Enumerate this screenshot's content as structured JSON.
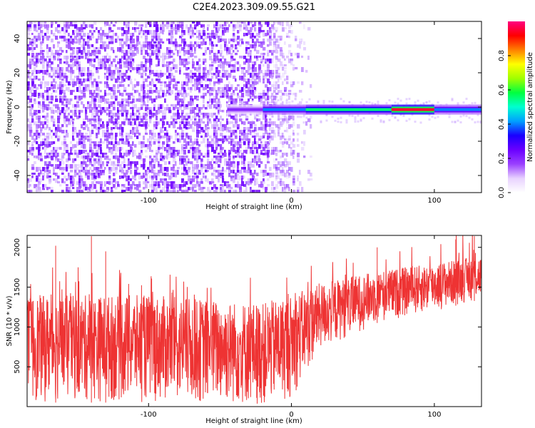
{
  "figure_title": "C2E4.2023.309.09.55.G21",
  "chart_data": [
    {
      "type": "heatmap",
      "title": "C2E4.2023.309.09.55.G21",
      "xlabel": "Height of straight line (km)",
      "ylabel": "Frequency (Hz)",
      "xlim": [
        -185,
        133
      ],
      "ylim": [
        -50,
        50
      ],
      "xticks": [
        -100,
        0,
        100
      ],
      "yticks": [
        -40,
        -20,
        0,
        20,
        40
      ],
      "colorbar": {
        "label": "Normalized spectral amplitude",
        "range": [
          0.0,
          1.0
        ],
        "ticks": [
          0.0,
          0.2,
          0.4,
          0.6,
          0.8
        ],
        "colormap": [
          "#ffffff",
          "#e8d2ff",
          "#9a40ff",
          "#6a00ff",
          "#1a00ff",
          "#00a0ff",
          "#00ffd0",
          "#00ff40",
          "#a0ff00",
          "#ffff00",
          "#ff8000",
          "#ff0000",
          "#ff0080"
        ]
      },
      "noise_region": {
        "x_start": -185,
        "x_end": -15,
        "amplitude_range": [
          0.0,
          0.15
        ]
      },
      "signal_band": {
        "frequency": -1.5,
        "x_start": -45,
        "x_end": 133
      },
      "signal_segments": [
        {
          "x_start": -45,
          "x_end": -20,
          "amplitude": 0.2
        },
        {
          "x_start": -20,
          "x_end": 10,
          "amplitude": 0.4
        },
        {
          "x_start": 10,
          "x_end": 70,
          "amplitude": 0.55
        },
        {
          "x_start": 70,
          "x_end": 100,
          "amplitude": 0.95
        },
        {
          "x_start": 100,
          "x_end": 133,
          "amplitude": 0.4
        }
      ],
      "grid": false
    },
    {
      "type": "line",
      "xlabel": "Height of straight line (km)",
      "ylabel": "SNR (10 * v/v)",
      "xlim": [
        -185,
        133
      ],
      "ylim": [
        0,
        2150
      ],
      "xticks": [
        -100,
        0,
        100
      ],
      "yticks": [
        500,
        1000,
        1500,
        2000
      ],
      "color": "#ee3333",
      "envelope": [
        {
          "x": -185,
          "low": 50,
          "high": 1400
        },
        {
          "x": -100,
          "low": 50,
          "high": 1400
        },
        {
          "x": -20,
          "low": 0,
          "high": 1300
        },
        {
          "x": 0,
          "low": 100,
          "high": 1400
        },
        {
          "x": 20,
          "low": 700,
          "high": 1550
        },
        {
          "x": 60,
          "low": 1050,
          "high": 1700
        },
        {
          "x": 100,
          "low": 1200,
          "high": 1800
        },
        {
          "x": 133,
          "low": 1350,
          "high": 1900
        }
      ],
      "peaks": [
        {
          "x": -165,
          "y": 2020
        },
        {
          "x": -140,
          "y": 2140
        },
        {
          "x": -130,
          "y": 1950
        },
        {
          "x": 60,
          "y": 2000
        },
        {
          "x": 115,
          "y": 2100
        },
        {
          "x": 128,
          "y": 2140
        }
      ],
      "grid": false
    }
  ]
}
